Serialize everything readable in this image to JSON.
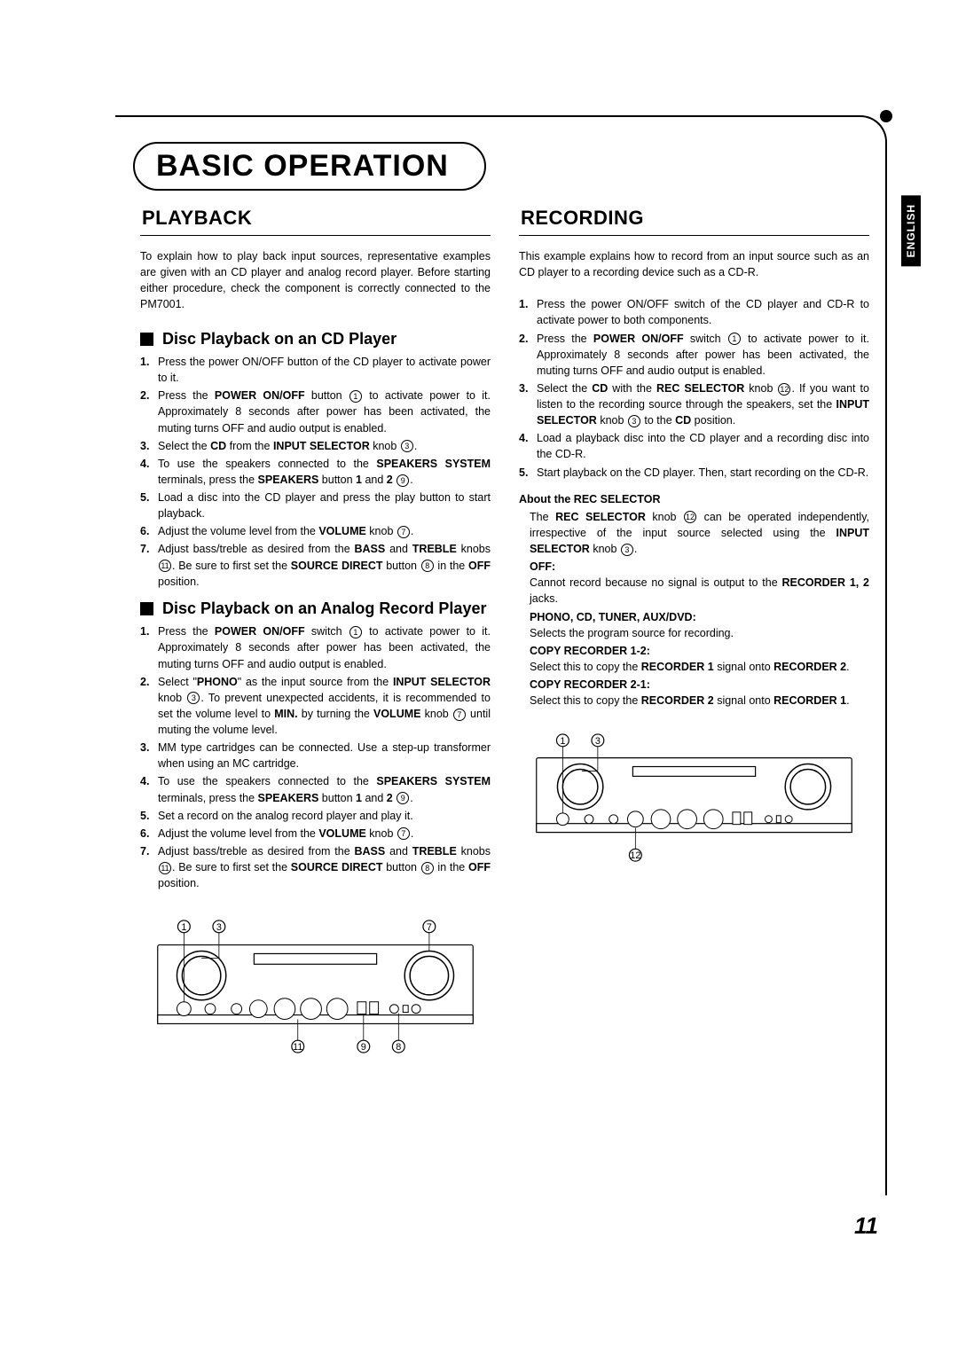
{
  "page": {
    "language_tab": "ENGLISH",
    "page_number": "11",
    "main_title": "BASIC OPERATION"
  },
  "playback": {
    "heading": "PLAYBACK",
    "intro": "To explain how to play back input sources, representative examples are given with an CD player and analog record player. Before starting either procedure, check the component is correctly connected to the PM7001.",
    "cd": {
      "title": "Disc Playback on an CD Player",
      "steps": [
        "Press the power ON/OFF button of the CD player to activate power to it.",
        "Press the <b>POWER ON/OFF</b> button <span class='circled'>1</span> to activate power to it. Approximately 8 seconds after power has been activated, the muting turns OFF and audio output is enabled.",
        "Select the <b>CD</b> from the <b>INPUT SELECTOR</b> knob <span class='circled'>3</span>.",
        "To use the speakers connected to the <b>SPEAKERS SYSTEM</b> terminals, press the <b>SPEAKERS</b> button <b>1</b> and <b>2</b> <span class='circled'>9</span>.",
        "Load a disc into the CD player and press the play button to start playback.",
        "Adjust the volume level from the <b>VOLUME</b> knob <span class='circled'>7</span>.",
        "Adjust bass/treble as desired from the <b>BASS</b> and <b>TREBLE</b> knobs <span class='circled'>11</span>. Be sure to first set the <b>SOURCE DIRECT</b> button <span class='circled'>8</span> in the <b>OFF</b> position."
      ]
    },
    "analog": {
      "title": "Disc Playback on an Analog Record Player",
      "steps": [
        "Press the <b>POWER ON/OFF</b> switch <span class='circled'>1</span> to activate power to it. Approximately 8 seconds after power has been activated, the muting turns OFF and audio output is enabled.",
        "Select \"<b>PHONO</b>\" as the input source from the <b>INPUT SELECTOR</b> knob <span class='circled'>3</span>. To prevent unexpected accidents, it is recommended to set the volume level to <b>MIN.</b> by turning the <b>VOLUME</b> knob <span class='circled'>7</span> until muting the volume level.",
        "MM type cartridges can be connected. Use a step-up transformer when using an MC cartridge.",
        "To use the speakers connected to the <b>SPEAKERS SYSTEM</b> terminals, press the <b>SPEAKERS</b> button <b>1</b> and <b>2</b> <span class='circled'>9</span>.",
        "Set a record on the analog record player and play it.",
        "Adjust the volume level from the <b>VOLUME</b> knob <span class='circled'>7</span>.",
        "Adjust bass/treble as desired from the <b>BASS</b> and <b>TREBLE</b> knobs <span class='circled'>11</span>. Be sure to first set the <b>SOURCE DIRECT</b> button <span class='circled'>8</span> in the <b>OFF</b> position."
      ]
    }
  },
  "recording": {
    "heading": "RECORDING",
    "intro": "This example explains how to record from an input source such as an CD player to a recording device such as a CD-R.",
    "steps": [
      "Press the power ON/OFF switch of the CD player and CD-R to activate power to both components.",
      "Press the <b>POWER ON/OFF</b> switch <span class='circled'>1</span> to activate power to it. Approximately 8 seconds after power has been activated, the muting turns OFF and audio output is enabled.",
      "Select the <b>CD</b> with the <b>REC SELECTOR</b> knob <span class='circled'>12</span>. If you want to listen to the recording source through the speakers, set the <b>INPUT SELECTOR</b> knob <span class='circled'>3</span> to the <b>CD</b> position.",
      "Load a playback disc into the CD player and a recording disc into the CD-R.",
      "Start playback on the CD player. Then, start recording on the CD-R."
    ],
    "rec_selector": {
      "title": "About the REC SELECTOR",
      "intro": "The <b>REC SELECTOR</b> knob <span class='circled'>12</span> can be operated independently, irrespective of the input source selected using the <b>INPUT SELECTOR</b> knob <span class='circled'>3</span>.",
      "items": [
        {
          "label": "OFF:",
          "desc": "Cannot record because no signal is output to the <b>RECORDER 1, 2</b> jacks."
        },
        {
          "label": "PHONO, CD, TUNER, AUX/DVD:",
          "desc": "Selects the program source for recording."
        },
        {
          "label": "COPY RECORDER 1-2:",
          "desc": "Select this to copy the <b>RECORDER 1</b> signal onto <b>RECORDER 2</b>."
        },
        {
          "label": "COPY RECORDER 2-1:",
          "desc": "Select this to copy the <b>RECORDER 2</b> signal onto <b>RECORDER 1</b>."
        }
      ]
    }
  },
  "diagrams": {
    "playback_callouts": [
      "1",
      "3",
      "7",
      "11",
      "9",
      "8"
    ],
    "recording_callouts": [
      "1",
      "3",
      "12"
    ]
  }
}
